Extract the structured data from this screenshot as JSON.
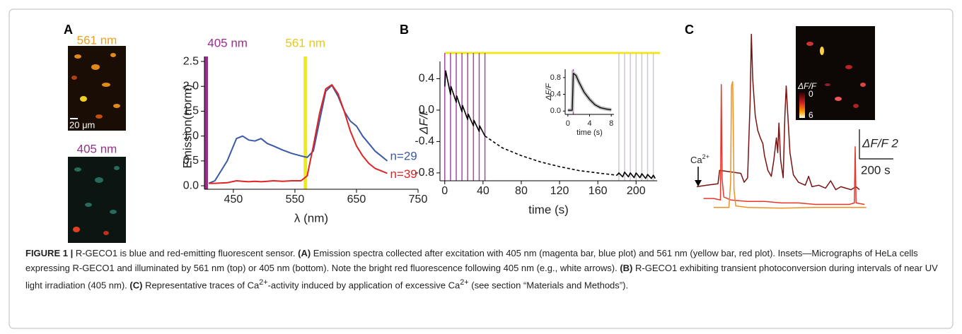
{
  "panel_labels": [
    "A",
    "B",
    "C"
  ],
  "micrographs": {
    "top_label": "561 nm",
    "scale_label": "20 μm",
    "bottom_label": "405 nm"
  },
  "chart_data": [
    {
      "type": "line",
      "ylabel": "Emission(norm)",
      "xlabel": "λ (nm)",
      "xlim": [
        403,
        750
      ],
      "ylim": [
        -0.07,
        2.6
      ],
      "xticks": [
        450,
        550,
        650,
        750
      ],
      "yticks": [
        {
          "value": 0,
          "label": "0.0"
        },
        0.5,
        {
          "value": 1,
          "label": "1.0"
        },
        1.5,
        {
          "value": 2,
          "label": "2.0"
        },
        2.5
      ],
      "x": [
        410,
        420,
        440,
        455,
        465,
        475,
        485,
        495,
        505,
        515,
        530,
        545,
        560,
        570,
        580,
        590,
        600,
        610,
        620,
        630,
        640,
        650,
        660,
        670,
        680,
        690,
        700
      ],
      "series": [
        {
          "name": "n=29",
          "color": "#3a5aa6",
          "values": [
            0.05,
            0.1,
            0.5,
            0.95,
            1.0,
            0.92,
            0.9,
            0.95,
            0.85,
            0.8,
            0.72,
            0.65,
            0.6,
            0.57,
            0.7,
            1.3,
            1.9,
            2.02,
            1.8,
            1.5,
            1.3,
            1.2,
            1.0,
            0.85,
            0.7,
            0.6,
            0.5
          ]
        },
        {
          "name": "n=39",
          "color": "#e02424",
          "values": [
            0.05,
            0.05,
            0.06,
            0.1,
            0.09,
            0.08,
            0.09,
            0.08,
            0.09,
            0.1,
            0.09,
            0.1,
            0.1,
            0.2,
            0.8,
            1.45,
            1.95,
            2.03,
            1.85,
            1.5,
            1.1,
            0.8,
            0.6,
            0.45,
            0.35,
            0.3,
            0.25
          ]
        }
      ],
      "excitation": [
        {
          "label": "405 nm",
          "x": 406,
          "color": "#9b2d8e"
        },
        {
          "label": "561 nm",
          "x": 567,
          "color": "#f0e81e"
        }
      ]
    },
    {
      "type": "line",
      "ylabel": "ΔF/F",
      "xlabel": "time (s)",
      "xlim": [
        -5,
        222
      ],
      "ylim": [
        -0.9,
        0.62
      ],
      "xticks": [
        0,
        40,
        80,
        120,
        160,
        200
      ],
      "yticks": [
        0.4,
        {
          "value": 0,
          "label": "0.0"
        },
        -0.4,
        -0.8
      ],
      "illumination_color": "#f0e81e",
      "pulses": [
        0,
        6,
        12,
        18,
        24,
        30,
        36,
        42
      ],
      "pulse_color": "#a44ca0",
      "recovery_pulses": [
        182,
        188,
        194,
        200,
        206,
        212,
        218
      ],
      "recovery_pulse_color": "#cfc6d2",
      "series": [
        {
          "color": "#000000",
          "dashed": false,
          "x": [
            0,
            1,
            6,
            6.5,
            12,
            12.5,
            18,
            18.5,
            24,
            24.5,
            30,
            30.5,
            36,
            36.5,
            42
          ],
          "values": [
            0.3,
            0.5,
            0.2,
            0.3,
            0.1,
            0.18,
            -0.02,
            0.06,
            -0.12,
            -0.05,
            -0.2,
            -0.13,
            -0.27,
            -0.2,
            -0.33
          ]
        },
        {
          "color": "#000000",
          "dashed": true,
          "x": [
            42,
            60,
            80,
            100,
            120,
            140,
            160,
            180
          ],
          "values": [
            -0.33,
            -0.48,
            -0.58,
            -0.66,
            -0.72,
            -0.77,
            -0.8,
            -0.83
          ]
        },
        {
          "color": "#000000",
          "dashed": false,
          "x": [
            180,
            182,
            186,
            188,
            192,
            194,
            198,
            200,
            204,
            206,
            210,
            212,
            216,
            218,
            220
          ],
          "values": [
            -0.83,
            -0.8,
            -0.85,
            -0.79,
            -0.85,
            -0.8,
            -0.86,
            -0.8,
            -0.86,
            -0.81,
            -0.87,
            -0.82,
            -0.87,
            -0.83,
            -0.87
          ]
        }
      ]
    },
    {
      "type": "line",
      "ylabel": "ΔF/F",
      "xlabel": "time (s)",
      "xlim": [
        -0.5,
        8.5
      ],
      "ylim": [
        -0.08,
        1.0
      ],
      "xticks": [
        0,
        4,
        8
      ],
      "yticks": [
        {
          "value": 0,
          "label": "0.0"
        },
        0.4,
        0.8
      ],
      "pulses": [
        1
      ],
      "pulse_color": "#a44ca0",
      "series": [
        {
          "color": "#000000",
          "x": [
            0,
            0.8,
            1,
            1.5,
            2,
            3,
            4,
            5,
            6,
            7,
            8
          ],
          "values": [
            0.02,
            0.02,
            0.9,
            0.85,
            0.7,
            0.45,
            0.28,
            0.15,
            0.08,
            0.05,
            0.03
          ]
        }
      ]
    },
    {
      "type": "line",
      "xlim": [
        0,
        1060
      ],
      "ylim": [
        0,
        12.5
      ],
      "stimulus_label": "Ca",
      "stimulus_label_sup": "2+",
      "scale_bars": {
        "x": {
          "value": 200,
          "label": "200 s"
        },
        "y": {
          "value": 2,
          "label": "ΔF/F 2"
        }
      },
      "colorbar": {
        "label": "ΔF/F",
        "min": 0,
        "max": 6
      },
      "series": [
        {
          "color": "#7a1212",
          "x": [
            0,
            60,
            125,
            135,
            200,
            260,
            280,
            300,
            315,
            322,
            330,
            345,
            360,
            375,
            390,
            400,
            420,
            440,
            455,
            470,
            478,
            485,
            495,
            510,
            520,
            528,
            535,
            550,
            570,
            600,
            640,
            660,
            680,
            720,
            760,
            790,
            820,
            850,
            880,
            910,
            940,
            960
          ],
          "values": [
            1.7,
            1.8,
            1.9,
            2.8,
            2.7,
            2.6,
            2.0,
            2.3,
            7.5,
            12,
            9,
            6.5,
            5.5,
            5.0,
            4.6,
            3.8,
            2.8,
            2.4,
            3.5,
            5.0,
            4.0,
            6.0,
            3.5,
            2.3,
            6.5,
            8.5,
            7,
            4,
            2.5,
            2.0,
            1.8,
            2.4,
            1.7,
            1.8,
            1.6,
            2.1,
            1.5,
            1.7,
            1.6,
            1.5,
            1.7,
            1.5
          ]
        },
        {
          "color": "#e8372a",
          "x": [
            40,
            100,
            140,
            145,
            150,
            160,
            200,
            300,
            400,
            500,
            600,
            700,
            800,
            900,
            930,
            935,
            940,
            990
          ],
          "values": [
            0.9,
            0.9,
            0.8,
            8.6,
            2.2,
            1.0,
            0.8,
            0.7,
            0.7,
            0.6,
            0.6,
            0.5,
            0.5,
            0.5,
            0.6,
            4.4,
            0.6,
            0.5
          ]
        },
        {
          "color": "#f0901e",
          "x": [
            100,
            190,
            200,
            205,
            212,
            220,
            230,
            300,
            500,
            700,
            900,
            1000
          ],
          "values": [
            0.3,
            0.3,
            2.0,
            8.5,
            8.8,
            1.5,
            0.4,
            0.3,
            0.25,
            0.3,
            0.3,
            0.3
          ]
        }
      ]
    }
  ],
  "caption": [
    {
      "text": "FIGURE 1 |",
      "style": "bold"
    },
    {
      "text": " R-GECO1 is blue and red-emitting fluorescent sensor. ",
      "style": "normal"
    },
    {
      "text": "(A)",
      "style": "bold"
    },
    {
      "text": " Emission spectra collected after excitation with 405 nm (magenta bar, blue plot) and 561 nm (yellow bar, red plot). Insets—Micrographs of HeLa cells expressing R-GECO1 and illuminated by 561 nm (top) or 405 nm (bottom). Note the bright red fluorescence following 405 nm (e.g., white arrows). ",
      "style": "normal"
    },
    {
      "text": "(B)",
      "style": "bold"
    },
    {
      "text": " R-GECO1 exhibiting transient photoconversion during intervals of near UV light irradiation (405 nm). ",
      "style": "normal"
    },
    {
      "text": "(C)",
      "style": "bold"
    },
    {
      "text": " Representative traces of Ca",
      "style": "normal"
    },
    {
      "text": "2+",
      "style": "sup"
    },
    {
      "text": "-activity induced by application of excessive Ca",
      "style": "normal"
    },
    {
      "text": "2+",
      "style": "sup"
    },
    {
      "text": " (see section “Materials and Methods”).",
      "style": "normal"
    }
  ]
}
